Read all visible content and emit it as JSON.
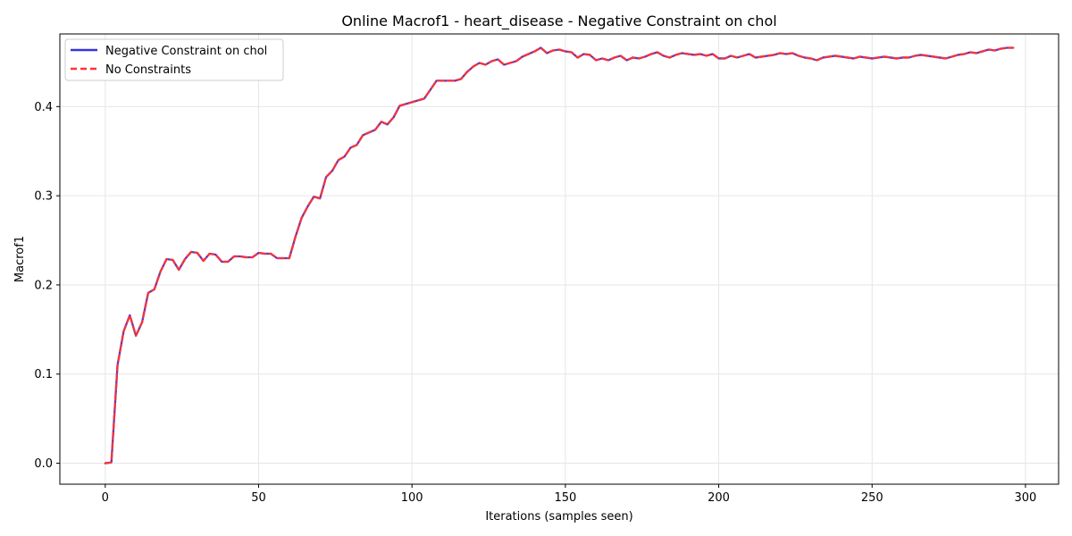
{
  "chart_data": {
    "type": "line",
    "title": "Online Macrof1 - heart_disease - Negative Constraint on chol",
    "xlabel": "Iterations (samples seen)",
    "ylabel": "Macrof1",
    "xlim": [
      -14.8,
      310.8
    ],
    "ylim": [
      -0.0235,
      0.4815
    ],
    "xticks": [
      0,
      50,
      100,
      150,
      200,
      250,
      300
    ],
    "yticks": [
      0.0,
      0.1,
      0.2,
      0.3,
      0.4
    ],
    "ytick_labels": [
      "0.0",
      "0.1",
      "0.2",
      "0.3",
      "0.4"
    ],
    "grid": true,
    "legend_position": "top-left",
    "x": [
      0,
      2,
      4,
      6,
      8,
      10,
      12,
      14,
      16,
      18,
      20,
      22,
      24,
      26,
      28,
      30,
      32,
      34,
      36,
      38,
      40,
      42,
      44,
      46,
      48,
      50,
      52,
      54,
      56,
      58,
      60,
      62,
      64,
      66,
      68,
      70,
      72,
      74,
      76,
      78,
      80,
      82,
      84,
      86,
      88,
      90,
      92,
      94,
      96,
      98,
      100,
      102,
      104,
      106,
      108,
      110,
      112,
      114,
      116,
      118,
      120,
      122,
      124,
      126,
      128,
      130,
      132,
      134,
      136,
      138,
      140,
      142,
      144,
      146,
      148,
      150,
      152,
      154,
      156,
      158,
      160,
      162,
      164,
      166,
      168,
      170,
      172,
      174,
      176,
      178,
      180,
      182,
      184,
      186,
      188,
      190,
      192,
      194,
      196,
      198,
      200,
      202,
      204,
      206,
      208,
      210,
      212,
      214,
      216,
      218,
      220,
      222,
      224,
      226,
      228,
      230,
      232,
      234,
      236,
      238,
      240,
      242,
      244,
      246,
      248,
      250,
      252,
      254,
      256,
      258,
      260,
      262,
      264,
      266,
      268,
      270,
      272,
      274,
      276,
      278,
      280,
      282,
      284,
      286,
      288,
      290,
      292,
      294,
      296
    ],
    "series": [
      {
        "name": "Negative Constraint on chol",
        "color": "#3333dd",
        "style": "solid",
        "values": [
          0.0,
          0.001,
          0.11,
          0.148,
          0.166,
          0.143,
          0.158,
          0.191,
          0.195,
          0.215,
          0.229,
          0.228,
          0.217,
          0.229,
          0.237,
          0.236,
          0.227,
          0.235,
          0.234,
          0.226,
          0.226,
          0.232,
          0.232,
          0.231,
          0.231,
          0.236,
          0.235,
          0.235,
          0.23,
          0.23,
          0.23,
          0.254,
          0.275,
          0.288,
          0.299,
          0.297,
          0.321,
          0.328,
          0.34,
          0.344,
          0.354,
          0.357,
          0.368,
          0.371,
          0.374,
          0.383,
          0.38,
          0.388,
          0.401,
          0.403,
          0.405,
          0.407,
          0.409,
          0.419,
          0.429,
          0.429,
          0.429,
          0.429,
          0.431,
          0.439,
          0.445,
          0.449,
          0.447,
          0.451,
          0.453,
          0.447,
          0.449,
          0.451,
          0.456,
          0.459,
          0.462,
          0.466,
          0.46,
          0.463,
          0.464,
          0.462,
          0.461,
          0.455,
          0.459,
          0.458,
          0.452,
          0.454,
          0.452,
          0.455,
          0.457,
          0.452,
          0.455,
          0.454,
          0.456,
          0.459,
          0.461,
          0.457,
          0.455,
          0.458,
          0.46,
          0.459,
          0.458,
          0.459,
          0.457,
          0.459,
          0.454,
          0.454,
          0.457,
          0.455,
          0.457,
          0.459,
          0.455,
          0.456,
          0.457,
          0.458,
          0.46,
          0.459,
          0.46,
          0.457,
          0.455,
          0.454,
          0.452,
          0.455,
          0.456,
          0.457,
          0.456,
          0.455,
          0.454,
          0.456,
          0.455,
          0.454,
          0.455,
          0.456,
          0.455,
          0.454,
          0.455,
          0.455,
          0.457,
          0.458,
          0.457,
          0.456,
          0.455,
          0.454,
          0.456,
          0.458,
          0.459,
          0.461,
          0.46,
          0.462,
          0.464,
          0.463,
          0.465,
          0.466,
          0.466
        ]
      },
      {
        "name": "No Constraints",
        "color": "#ff3333",
        "style": "dashed",
        "values": [
          0.0,
          0.001,
          0.11,
          0.148,
          0.166,
          0.143,
          0.158,
          0.191,
          0.195,
          0.215,
          0.229,
          0.228,
          0.217,
          0.229,
          0.237,
          0.236,
          0.227,
          0.235,
          0.234,
          0.226,
          0.226,
          0.232,
          0.232,
          0.231,
          0.231,
          0.236,
          0.235,
          0.235,
          0.23,
          0.23,
          0.23,
          0.254,
          0.275,
          0.288,
          0.299,
          0.297,
          0.321,
          0.328,
          0.34,
          0.344,
          0.354,
          0.357,
          0.368,
          0.371,
          0.374,
          0.383,
          0.38,
          0.388,
          0.401,
          0.403,
          0.405,
          0.407,
          0.409,
          0.419,
          0.429,
          0.429,
          0.429,
          0.429,
          0.431,
          0.439,
          0.445,
          0.449,
          0.447,
          0.451,
          0.453,
          0.447,
          0.449,
          0.451,
          0.456,
          0.459,
          0.462,
          0.466,
          0.46,
          0.463,
          0.464,
          0.462,
          0.461,
          0.455,
          0.459,
          0.458,
          0.452,
          0.454,
          0.452,
          0.455,
          0.457,
          0.452,
          0.455,
          0.454,
          0.456,
          0.459,
          0.461,
          0.457,
          0.455,
          0.458,
          0.46,
          0.459,
          0.458,
          0.459,
          0.457,
          0.459,
          0.454,
          0.454,
          0.457,
          0.455,
          0.457,
          0.459,
          0.455,
          0.456,
          0.457,
          0.458,
          0.46,
          0.459,
          0.46,
          0.457,
          0.455,
          0.454,
          0.452,
          0.455,
          0.456,
          0.457,
          0.456,
          0.455,
          0.454,
          0.456,
          0.455,
          0.454,
          0.455,
          0.456,
          0.455,
          0.454,
          0.455,
          0.455,
          0.457,
          0.458,
          0.457,
          0.456,
          0.455,
          0.454,
          0.456,
          0.458,
          0.459,
          0.461,
          0.46,
          0.462,
          0.464,
          0.463,
          0.465,
          0.466,
          0.466
        ]
      }
    ]
  }
}
